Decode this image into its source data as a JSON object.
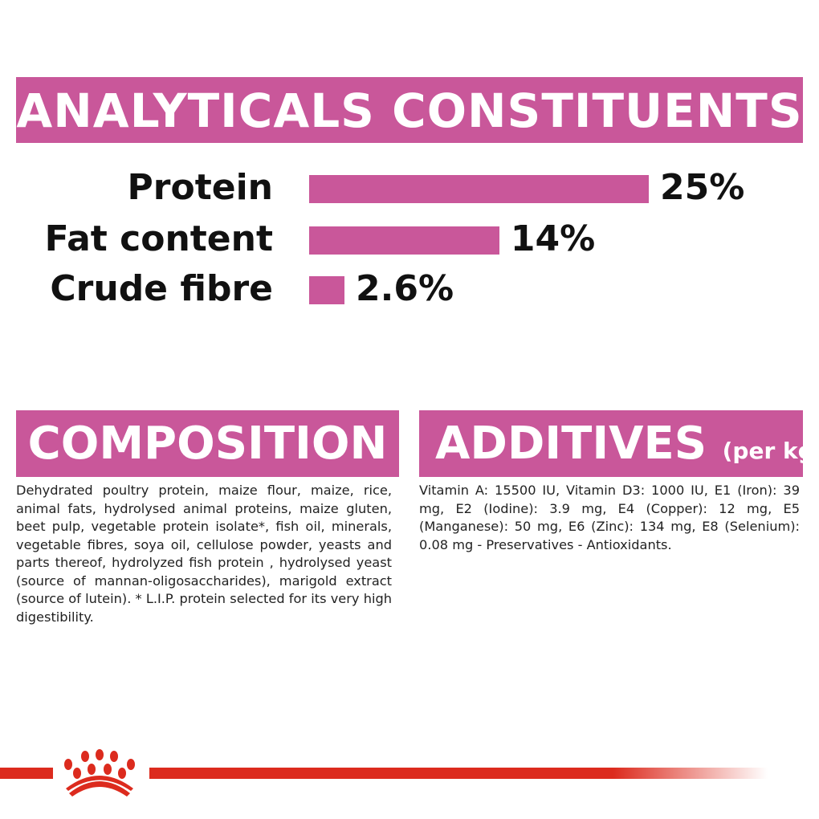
{
  "analyticals": {
    "title": "ANALYTICALS CONSTITUENTS",
    "rows": [
      {
        "label": "Protein",
        "value": 25,
        "display": "25%"
      },
      {
        "label": "Fat content",
        "value": 14,
        "display": "14%"
      },
      {
        "label": "Crude fibre",
        "value": 2.6,
        "display": "2.6%"
      }
    ]
  },
  "composition": {
    "title": "COMPOSITION",
    "text": "Dehydrated poultry protein, maize flour, maize, rice, animal fats, hydrolysed animal proteins, maize gluten, beet pulp, vegetable protein isolate*, fish oil, minerals, vegetable fibres, soya oil, cellulose powder, yeasts and parts thereof, hydrolyzed fish protein , hydrolysed yeast (source of mannan-oligosaccharides), marigold extract (source of lutein). * L.I.P. protein selected for its very high digestibility."
  },
  "additives": {
    "title": "ADDITIVES",
    "subtitle": "(per kg)",
    "text": "Vitamin A: 15500 IU, Vitamin D3: 1000 IU, E1 (Iron): 39 mg, E2 (Iodine): 3.9 mg, E4 (Copper): 12 mg, E5 (Manganese): 50 mg, E6 (Zinc): 134 mg, E8 (Selenium): 0.08 mg - Preservatives - Antioxidants."
  },
  "colors": {
    "accent": "#c9579a",
    "brand_red": "#dc2b1e"
  },
  "logo": {
    "icon": "crown-paw-logo"
  }
}
